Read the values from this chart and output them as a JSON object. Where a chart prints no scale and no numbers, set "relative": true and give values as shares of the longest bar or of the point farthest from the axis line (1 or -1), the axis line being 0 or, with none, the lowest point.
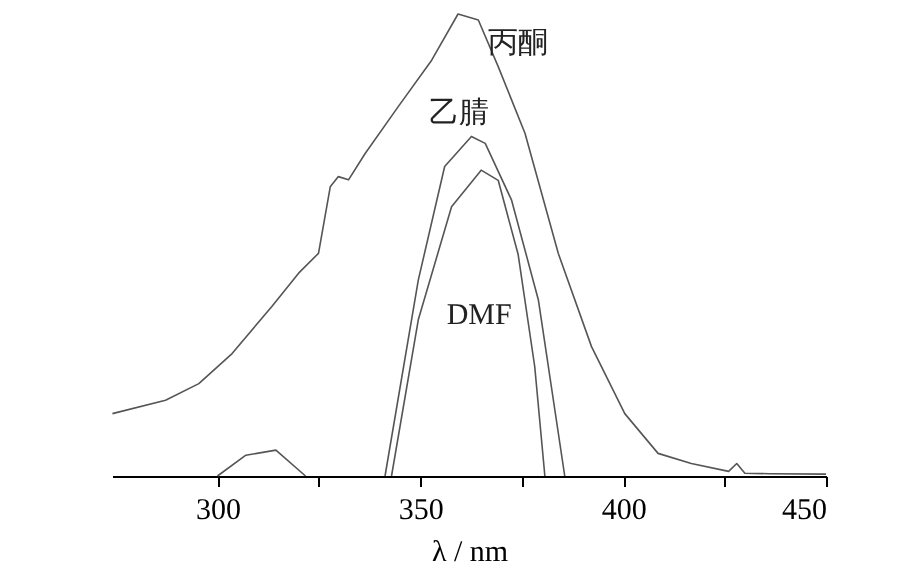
{
  "chart_data": {
    "type": "line",
    "relative": true,
    "xlabel": "λ / nm",
    "xlim": [
      274,
      450
    ],
    "xticks": [
      300,
      {
        "value": 325,
        "label": null
      },
      350,
      {
        "value": 375,
        "label": null
      },
      400,
      {
        "value": 425,
        "label": null
      },
      450
    ],
    "grid": false,
    "marker": "none",
    "line_style": "solid",
    "series": [
      {
        "name": "丙酮",
        "color": "#555555",
        "x": [
          274.1,
          287.2,
          295.4,
          303.6,
          313.4,
          320,
          324.9,
          327.8,
          329.8,
          332.3,
          336.4,
          344.6,
          352.8,
          359.3,
          364.3,
          369.2,
          375.8,
          384,
          392.2,
          400.4,
          408.6,
          416.8,
          426,
          428,
          430,
          436,
          450
        ],
        "values": [
          0.135,
          0.164,
          0.2,
          0.265,
          0.367,
          0.439,
          0.482,
          0.626,
          0.648,
          0.641,
          0.698,
          0.8,
          0.9,
          1.0,
          0.987,
          0.886,
          0.742,
          0.482,
          0.28,
          0.135,
          0.049,
          0.027,
          0.01,
          0.027,
          0.006,
          0.005,
          0.004
        ]
      },
      {
        "name": "乙腈",
        "color": "#555555",
        "x": [
          341.3,
          349.5,
          356,
          362.6,
          366,
          372.5,
          379.1,
          385.6
        ],
        "values": [
          0,
          0.424,
          0.67,
          0.735,
          0.72,
          0.597,
          0.381,
          0
        ]
      },
      {
        "name": "DMF",
        "color": "#555555",
        "x": [
          300,
          307,
          314.4,
          321.7,
          330,
          342.9,
          349.5,
          357.7,
          365,
          369.2,
          374.1,
          378.2,
          380.7
        ],
        "values": [
          0,
          0.045,
          0.056,
          0,
          null,
          0,
          0.338,
          0.583,
          0.662,
          0.64,
          0.48,
          0.237,
          0
        ]
      }
    ]
  }
}
